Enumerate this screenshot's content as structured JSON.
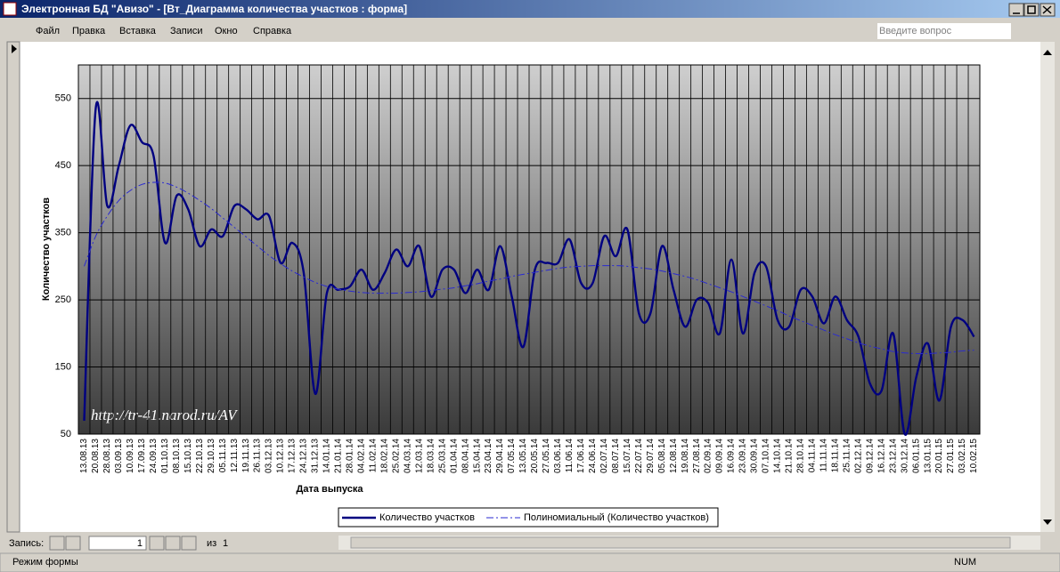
{
  "window": {
    "title": "Электронная БД \"Авизо\" - [Вт_Диаграмма количества участков : форма]",
    "menu": [
      "Файл",
      "Правка",
      "Вставка",
      "Записи",
      "Окно",
      "Справка"
    ],
    "question": "Введите вопрос"
  },
  "navigation": {
    "label": "Запись:",
    "current": "1",
    "of": "из",
    "total": "1"
  },
  "status": {
    "mode": "Режим формы",
    "num": "NUM"
  },
  "chart_data": {
    "type": "line",
    "ylabel": "Количество участков",
    "xlabel": "Дата выпуска",
    "annotation": "http://tr-41.narod.ru/AV",
    "categories": [
      "13.08.13",
      "20.08.13",
      "28.08.13",
      "03.09.13",
      "10.09.13",
      "17.09.13",
      "24.09.13",
      "01.10.13",
      "08.10.13",
      "15.10.13",
      "22.10.13",
      "29.10.13",
      "05.11.13",
      "12.11.13",
      "19.11.13",
      "26.11.13",
      "03.12.13",
      "10.12.13",
      "17.12.13",
      "24.12.13",
      "31.12.13",
      "14.01.14",
      "21.01.14",
      "28.01.14",
      "04.02.14",
      "11.02.14",
      "18.02.14",
      "25.02.14",
      "04.03.14",
      "12.03.14",
      "18.03.14",
      "25.03.14",
      "01.04.14",
      "08.04.14",
      "15.04.14",
      "23.04.14",
      "29.04.14",
      "07.05.14",
      "13.05.14",
      "20.05.14",
      "27.05.14",
      "03.06.14",
      "11.06.14",
      "17.06.14",
      "24.06.14",
      "02.07.14",
      "08.07.14",
      "15.07.14",
      "22.07.14",
      "29.07.14",
      "05.08.14",
      "12.08.14",
      "19.08.14",
      "27.08.14",
      "02.09.14",
      "09.09.14",
      "16.09.14",
      "23.09.14",
      "30.09.14",
      "07.10.14",
      "14.10.14",
      "21.10.14",
      "28.10.14",
      "04.11.14",
      "11.11.14",
      "18.11.14",
      "25.11.14",
      "02.12.14",
      "09.12.14",
      "16.12.14",
      "23.12.14",
      "30.12.14",
      "06.01.15",
      "13.01.15",
      "20.01.15",
      "27.01.15",
      "03.02.15",
      "10.02.15"
    ],
    "series": [
      {
        "name": "Количество участков",
        "color": "#000080",
        "values": [
          70,
          535,
          390,
          450,
          510,
          485,
          465,
          335,
          405,
          385,
          330,
          355,
          345,
          390,
          385,
          370,
          375,
          305,
          335,
          290,
          110,
          260,
          265,
          270,
          295,
          265,
          290,
          325,
          300,
          330,
          255,
          295,
          295,
          260,
          295,
          265,
          330,
          255,
          180,
          295,
          305,
          305,
          340,
          275,
          275,
          345,
          315,
          355,
          230,
          230,
          330,
          265,
          210,
          250,
          245,
          200,
          310,
          200,
          290,
          300,
          220,
          210,
          265,
          255,
          215,
          255,
          220,
          195,
          125,
          115,
          200,
          50,
          135,
          185,
          100,
          210,
          220,
          195
        ]
      },
      {
        "name": "Полиномиальный (Количество участков)",
        "color": "#2a2ad0",
        "dashed": true,
        "values": [
          300,
          345,
          375,
          398,
          413,
          422,
          425,
          424,
          418,
          409,
          398,
          386,
          372,
          358,
          344,
          330,
          316,
          304,
          293,
          284,
          276,
          270,
          266,
          263,
          261,
          260,
          260,
          260,
          261,
          262,
          264,
          266,
          268,
          271,
          274,
          278,
          281,
          285,
          288,
          291,
          294,
          297,
          299,
          300,
          301,
          301,
          301,
          300,
          298,
          296,
          293,
          289,
          285,
          280,
          274,
          268,
          262,
          255,
          248,
          241,
          234,
          226,
          219,
          212,
          205,
          198,
          192,
          186,
          181,
          177,
          173,
          171,
          170,
          170,
          171,
          172,
          174,
          175
        ]
      }
    ],
    "ylim": [
      50,
      600
    ],
    "yticks": [
      50,
      150,
      250,
      350,
      450,
      550
    ],
    "grid": true,
    "legend": "bottom"
  }
}
